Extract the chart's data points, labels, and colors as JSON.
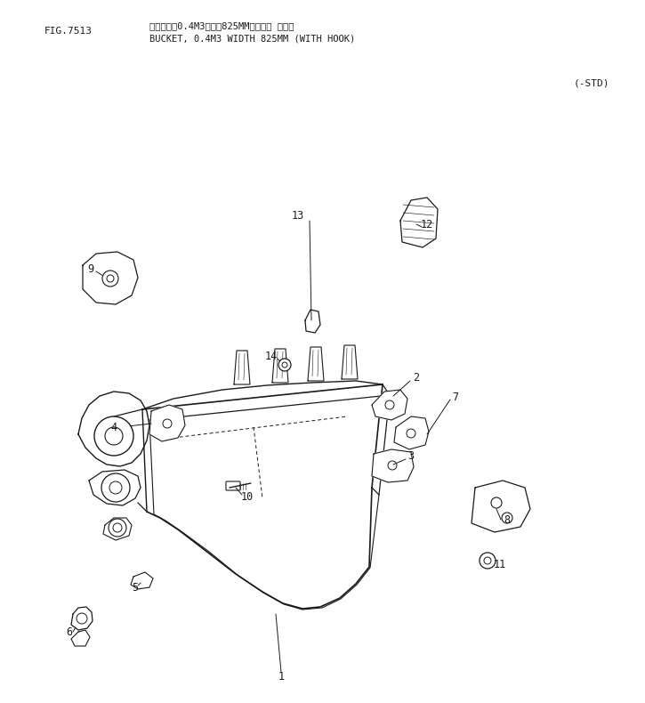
{
  "fig_label": "FIG.7513",
  "title_jp": "バケット，0.4M3，幅　825MM（フック 付き）",
  "title_en": "BUCKET, 0.4M3 WIDTH 825MM (WITH HOOK)",
  "std_label": "(-STD)",
  "bg_color": "#ffffff",
  "line_color": "#1a1a1a",
  "figsize": [
    7.25,
    7.9
  ],
  "dpi": 100
}
